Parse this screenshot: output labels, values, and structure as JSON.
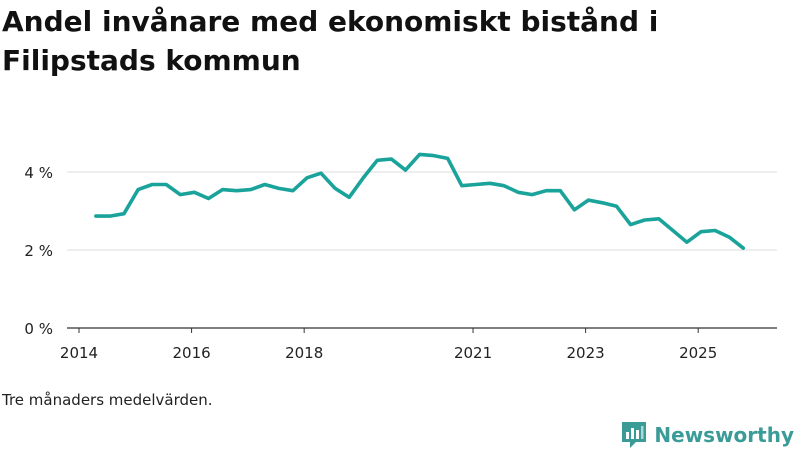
{
  "header": {
    "title": "Andel invånare med ekonomiskt bistånd i Filipstads kommun"
  },
  "footer": {
    "caption": "Tre månaders medelvärden.",
    "brand": "Newsworthy"
  },
  "colors": {
    "line": "#1aa39a",
    "grid": "#dddddd",
    "axis": "#333333",
    "text": "#222222",
    "brand": "#3a9b97"
  },
  "chart_data": {
    "type": "line",
    "title": "Andel invånare med ekonomiskt bistånd i Filipstads kommun",
    "xlabel": "",
    "ylabel": "",
    "xlim": [
      2014,
      2026.4
    ],
    "ylim": [
      0,
      5
    ],
    "yticks": [
      {
        "value": 0,
        "label": "0 %"
      },
      {
        "value": 2,
        "label": "2 %"
      },
      {
        "value": 4,
        "label": "4 %"
      }
    ],
    "xticks": [
      {
        "value": 2014,
        "label": "2014"
      },
      {
        "value": 2016,
        "label": "2016"
      },
      {
        "value": 2018,
        "label": "2018"
      },
      {
        "value": 2021,
        "label": "2021"
      },
      {
        "value": 2023,
        "label": "2023"
      },
      {
        "value": 2025,
        "label": "2025"
      }
    ],
    "grid": true,
    "series": [
      {
        "name": "Andel invånare med ekonomiskt bistånd",
        "x": [
          2014.3,
          2014.55,
          2014.8,
          2015.05,
          2015.3,
          2015.55,
          2015.8,
          2016.05,
          2016.3,
          2016.55,
          2016.8,
          2017.05,
          2017.3,
          2017.55,
          2017.8,
          2018.05,
          2018.3,
          2018.55,
          2018.8,
          2019.05,
          2019.3,
          2019.55,
          2019.8,
          2020.05,
          2020.3,
          2020.55,
          2020.8,
          2021.05,
          2021.3,
          2021.55,
          2021.8,
          2022.05,
          2022.3,
          2022.55,
          2022.8,
          2023.05,
          2023.3,
          2023.55,
          2023.8,
          2024.05,
          2024.3,
          2024.55,
          2024.8,
          2025.05,
          2025.3,
          2025.55,
          2025.8
        ],
        "values": [
          2.87,
          2.87,
          2.93,
          3.55,
          3.68,
          3.68,
          3.42,
          3.48,
          3.32,
          3.55,
          3.52,
          3.55,
          3.68,
          3.58,
          3.52,
          3.85,
          3.97,
          3.58,
          3.35,
          3.85,
          4.3,
          4.33,
          4.05,
          4.45,
          4.42,
          4.35,
          3.65,
          3.68,
          3.71,
          3.65,
          3.48,
          3.42,
          3.52,
          3.52,
          3.03,
          3.28,
          3.21,
          3.12,
          2.65,
          2.77,
          2.8,
          2.5,
          2.2,
          2.47,
          2.5,
          2.33,
          2.05
        ]
      }
    ]
  }
}
